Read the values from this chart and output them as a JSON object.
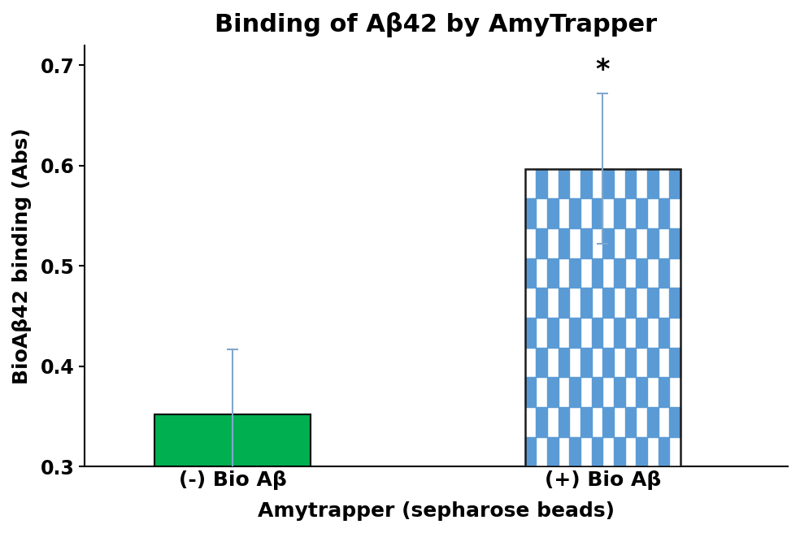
{
  "title": "Binding of Aβ42 by AmyTrapper",
  "ylabel": "BioAβ42 binding (Abs)",
  "xlabel": "Amytrapper (sepharose beads)",
  "categories": [
    "(-) Bio Aβ",
    "(+) Bio Aβ"
  ],
  "values": [
    0.352,
    0.597
  ],
  "errors": [
    0.065,
    0.075
  ],
  "ylim": [
    0.3,
    0.72
  ],
  "yticks": [
    0.3,
    0.4,
    0.5,
    0.6,
    0.7
  ],
  "bar_width": 0.42,
  "x_positions": [
    0.5,
    1.5
  ],
  "green_color": "#00b050",
  "blue_color": "#5b9bd5",
  "error_color_bar1": "#7fa8cc",
  "error_color_bar2": "#7fa8cc",
  "background_color": "#ffffff",
  "title_fontsize": 22,
  "label_fontsize": 18,
  "tick_fontsize": 17,
  "significance_label": "*",
  "checkerboard_cols": 14
}
